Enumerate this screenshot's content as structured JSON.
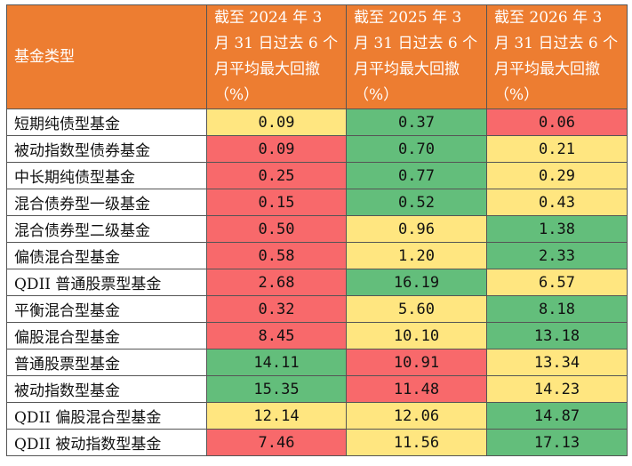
{
  "table": {
    "header": [
      "基金类型",
      "截至 2024 年 3 月 31 日过去 6 个月平均最大回撤（%）",
      "截至 2025 年 3 月 31 日过去 6 个月平均最大回撤（%）",
      "截至 2026 年 3 月 31 日过去 6 个月平均最大回撤（%）"
    ],
    "header_color": "#ED7D31",
    "rows": [
      [
        "短期纯债型基金",
        "0.09",
        "0.37",
        "0.06"
      ],
      [
        "被动指数型债券基金",
        "0.09",
        "0.70",
        "0.21"
      ],
      [
        "中长期纯债型基金",
        "0.25",
        "0.77",
        "0.29"
      ],
      [
        "混合债券型一级基金",
        "0.15",
        "0.52",
        "0.43"
      ],
      [
        "混合债券型二级基金",
        "0.50",
        "0.96",
        "1.38"
      ],
      [
        "偏债混合型基金",
        "0.58",
        "1.20",
        "2.33"
      ],
      [
        "QDII 普通股票型基金",
        "2.68",
        "16.19",
        "6.57"
      ],
      [
        "平衡混合型基金",
        "0.32",
        "5.60",
        "8.18"
      ],
      [
        "偏股混合型基金",
        "8.45",
        "10.10",
        "13.18"
      ],
      [
        "普通股票型基金",
        "14.11",
        "10.91",
        "13.34"
      ],
      [
        "被动指数型基金",
        "15.35",
        "11.48",
        "14.23"
      ],
      [
        "QDII 偏股混合型基金",
        "12.14",
        "12.06",
        "14.87"
      ],
      [
        "QDII 被动指数型基金",
        "7.46",
        "11.56",
        "17.13"
      ]
    ],
    "cell_colors": [
      [
        "#FFE680",
        "#63BE7B",
        "#F8696B"
      ],
      [
        "#F8696B",
        "#63BE7B",
        "#FFE680"
      ],
      [
        "#F8696B",
        "#63BE7B",
        "#FFE680"
      ],
      [
        "#F8696B",
        "#63BE7B",
        "#FFE680"
      ],
      [
        "#F8696B",
        "#FFE680",
        "#63BE7B"
      ],
      [
        "#F8696B",
        "#FFE680",
        "#63BE7B"
      ],
      [
        "#F8696B",
        "#63BE7B",
        "#FFE680"
      ],
      [
        "#F8696B",
        "#FFE680",
        "#63BE7B"
      ],
      [
        "#F8696B",
        "#FFE680",
        "#63BE7B"
      ],
      [
        "#63BE7B",
        "#F8696B",
        "#FFE680"
      ],
      [
        "#63BE7B",
        "#F8696B",
        "#FFE680"
      ],
      [
        "#FFE680",
        "#FFE680",
        "#63BE7B"
      ],
      [
        "#F8696B",
        "#FFE680",
        "#63BE7B"
      ]
    ]
  }
}
